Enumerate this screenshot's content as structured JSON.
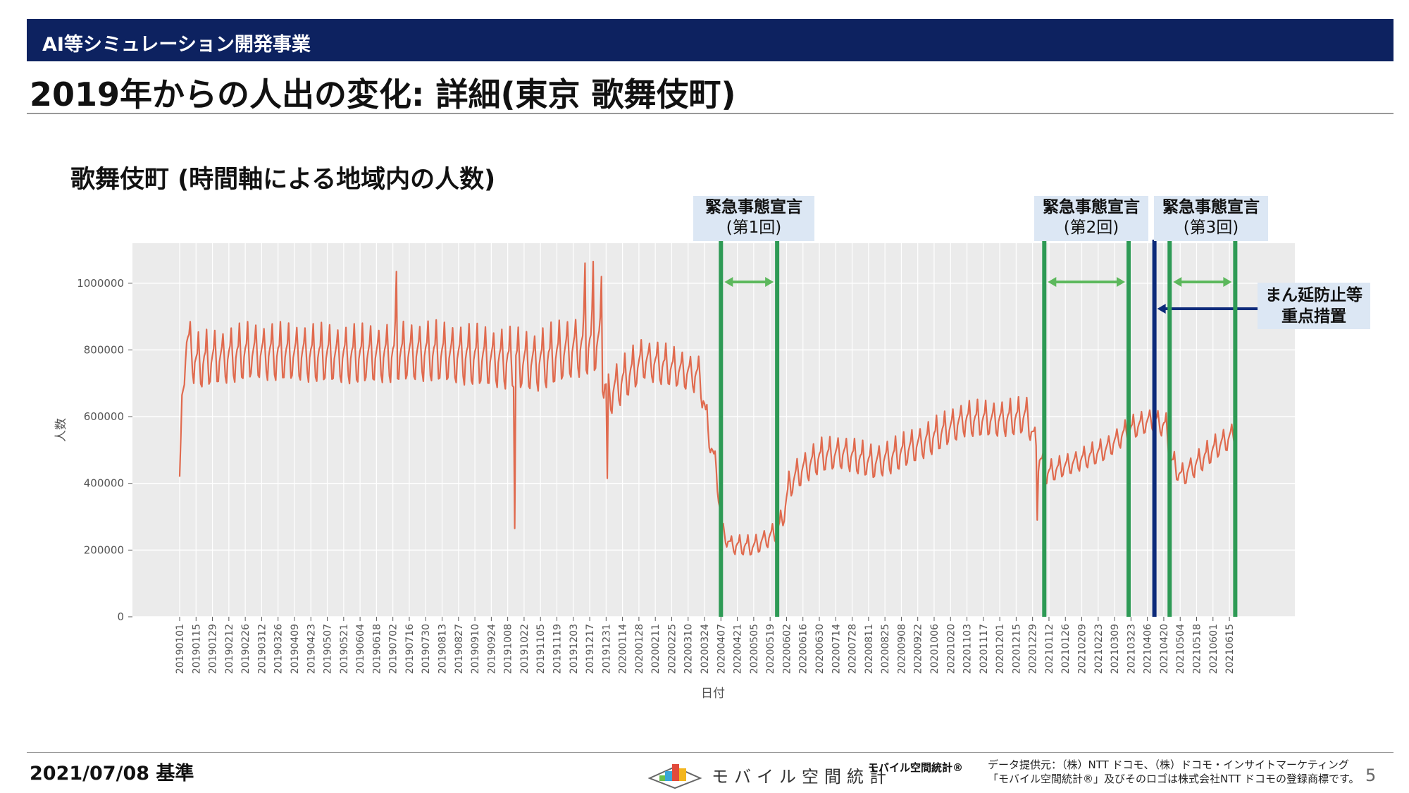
{
  "header": {
    "section": "AI等シミュレーション開発事業"
  },
  "page_title": "2019年からの人出の変化: 詳細(東京 歌舞伎町)",
  "chart_title": "歌舞伎町 (時間軸による地域内の人数)",
  "annotations": {
    "declaration_1": {
      "line1": "緊急事態宣言",
      "line2": "(第1回)"
    },
    "declaration_2": {
      "line1": "緊急事態宣言",
      "line2": "(第2回)"
    },
    "declaration_3": {
      "line1": "緊急事態宣言",
      "line2": "(第3回)"
    },
    "manen": {
      "line1": "まん延防止等",
      "line2": "重点措置"
    }
  },
  "footer": {
    "date": "2021/07/08 基準",
    "logo_text": "モバイル空間統計",
    "brand_small": "モバイル空間統計®",
    "credit_line1": "データ提供元：（株）NTT ドコモ、（株）ドコモ・インサイトマーケティング",
    "credit_line2": "「モバイル空間統計®」及びそのロゴは株式会社NTT ドコモの登録商標です。",
    "page_number": "5"
  },
  "colors": {
    "header_bg": "#0d2260",
    "line": "#e06a4e",
    "declaration_lines": "#2e9a55",
    "declaration_arrows": "#5cb85c",
    "manen_line": "#0d2a7a",
    "plot_bg": "#ebebeb",
    "label_bg": "#dce7f4"
  },
  "chart_data": {
    "type": "line",
    "title": "",
    "xlabel": "日付",
    "ylabel": "人数",
    "ylim": [
      0,
      1120000
    ],
    "yticks": [
      0,
      200000,
      400000,
      600000,
      800000,
      1000000
    ],
    "ytick_labels": [
      "0",
      "200000",
      "400000",
      "600000",
      "800000",
      "1000000"
    ],
    "x_range": [
      "20190101",
      "20210630"
    ],
    "xtick_labels": [
      "20190101",
      "20190115",
      "20190129",
      "20190212",
      "20190226",
      "20190312",
      "20190326",
      "20190409",
      "20190423",
      "20190507",
      "20190521",
      "20190604",
      "20190618",
      "20190702",
      "20190716",
      "20190730",
      "20190813",
      "20190827",
      "20190910",
      "20190924",
      "20191008",
      "20191022",
      "20191105",
      "20191119",
      "20191203",
      "20191217",
      "20191231",
      "20200114",
      "20200128",
      "20200211",
      "20200225",
      "20200310",
      "20200324",
      "20200407",
      "20200421",
      "20200505",
      "20200519",
      "20200602",
      "20200616",
      "20200630",
      "20200714",
      "20200728",
      "20200811",
      "20200825",
      "20200908",
      "20200922",
      "20201006",
      "20201020",
      "20201103",
      "20201117",
      "20201201",
      "20201215",
      "20201229",
      "20210112",
      "20210126",
      "20210209",
      "20210223",
      "20210309",
      "20210323",
      "20210406",
      "20210420",
      "20210504",
      "20210518",
      "20210601",
      "20210615"
    ],
    "grid": true,
    "legend": "none",
    "series": [
      {
        "name": "",
        "baseline": [
          [
            "20190101",
            420000
          ],
          [
            "20190106",
            840000
          ],
          [
            "20190115",
            760000
          ],
          [
            "20190301",
            790000
          ],
          [
            "20190601",
            780000
          ],
          [
            "20190801",
            790000
          ],
          [
            "20191001",
            770000
          ],
          [
            "20191101",
            760000
          ],
          [
            "20191201",
            800000
          ],
          [
            "20191225",
            820000
          ],
          [
            "20200101",
            660000
          ],
          [
            "20200201",
            770000
          ],
          [
            "20200301",
            740000
          ],
          [
            "20200320",
            720000
          ],
          [
            "20200327",
            560000
          ],
          [
            "20200403",
            440000
          ],
          [
            "20200408",
            260000
          ],
          [
            "20200415",
            215000
          ],
          [
            "20200505",
            210000
          ],
          [
            "20200525",
            255000
          ],
          [
            "20200530",
            300000
          ],
          [
            "20200605",
            400000
          ],
          [
            "20200615",
            440000
          ],
          [
            "20200701",
            480000
          ],
          [
            "20200720",
            490000
          ],
          [
            "20200815",
            460000
          ],
          [
            "20200901",
            480000
          ],
          [
            "20201001",
            530000
          ],
          [
            "20201101",
            590000
          ],
          [
            "20201201",
            590000
          ],
          [
            "20201225",
            600000
          ],
          [
            "20210103",
            480000
          ],
          [
            "20210110",
            430000
          ],
          [
            "20210201",
            460000
          ],
          [
            "20210301",
            500000
          ],
          [
            "20210321",
            560000
          ],
          [
            "20210410",
            590000
          ],
          [
            "20210422",
            570000
          ],
          [
            "20210426",
            470000
          ],
          [
            "20210505",
            420000
          ],
          [
            "20210601",
            500000
          ],
          [
            "20210620",
            550000
          ]
        ],
        "weekly_amplitude": [
          [
            "20190101",
            150000
          ],
          [
            "20191231",
            170000
          ],
          [
            "20200101",
            130000
          ],
          [
            "20200320",
            100000
          ],
          [
            "20200408",
            50000
          ],
          [
            "20200530",
            60000
          ],
          [
            "20200605",
            90000
          ],
          [
            "20201231",
            100000
          ],
          [
            "20210110",
            60000
          ],
          [
            "20210620",
            70000
          ]
        ],
        "dips": [
          [
            "20191014",
            265000
          ],
          [
            "20200101",
            415000
          ],
          [
            "20210102",
            290000
          ]
        ],
        "peaks": [
          [
            "20190705",
            1035000
          ],
          [
            "20191213",
            1060000
          ],
          [
            "20191220",
            1065000
          ],
          [
            "20191227",
            1020000
          ]
        ]
      }
    ],
    "events": [
      {
        "label": "緊急事態宣言 (第1回)",
        "start": "20200407",
        "end": "20200525"
      },
      {
        "label": "緊急事態宣言 (第2回)",
        "start": "20210108",
        "end": "20210321"
      },
      {
        "label": "まん延防止等重点措置",
        "date": "20210412"
      },
      {
        "label": "緊急事態宣言 (第3回)",
        "start": "20210425",
        "end": "20210620"
      }
    ]
  }
}
